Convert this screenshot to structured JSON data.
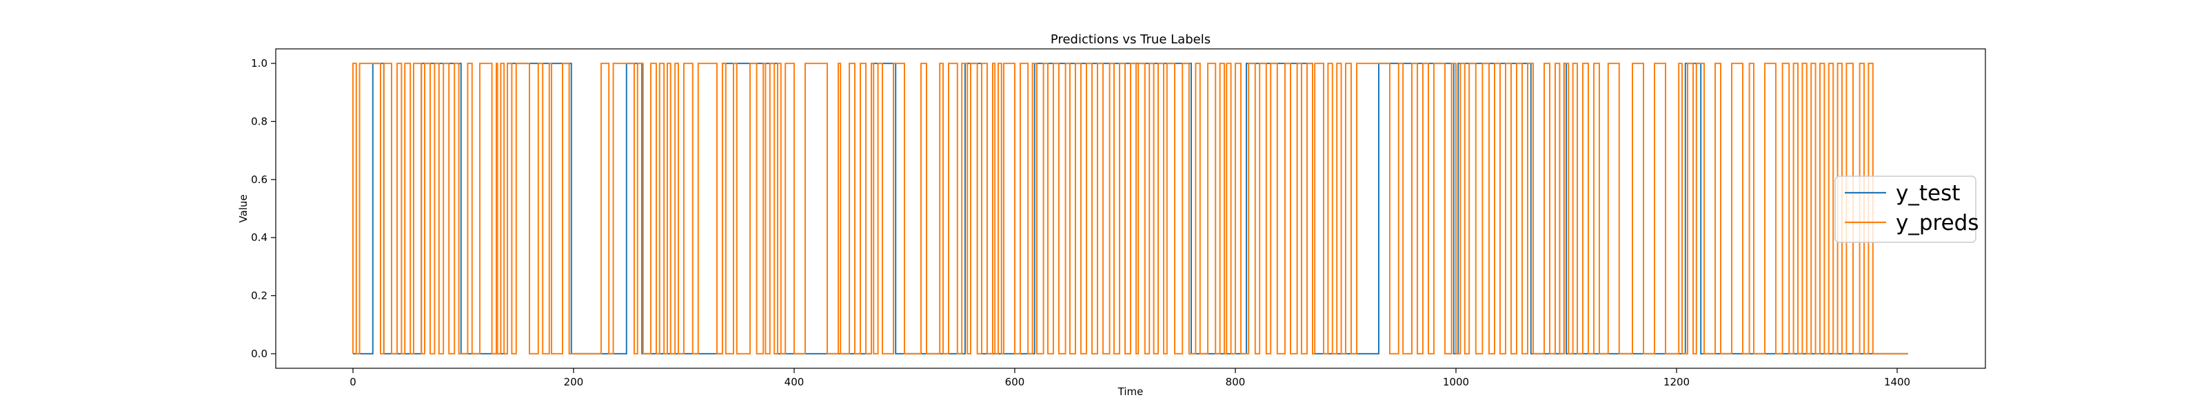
{
  "chart_data": {
    "type": "line",
    "title": "Predictions vs True Labels",
    "xlabel": "Time",
    "ylabel": "Value",
    "xlim": [
      -70,
      1480
    ],
    "ylim": [
      -0.05,
      1.05
    ],
    "xticks": [
      0,
      200,
      400,
      600,
      800,
      1000,
      1200,
      1400
    ],
    "yticks": [
      0.0,
      0.2,
      0.4,
      0.6,
      0.8,
      1.0
    ],
    "grid": false,
    "legend_position": "center-right",
    "series": [
      {
        "name": "y_test",
        "color": "#1f77b4",
        "x_end": 1410,
        "initial": 0,
        "transitions": [
          18,
          28,
          62,
          98,
          140,
          198,
          248,
          262,
          335,
          385,
          470,
          492,
          555,
          570,
          618,
          760,
          810,
          870,
          930,
          998,
          1002,
          1068,
          1098,
          1100,
          1208,
          1222
        ]
      },
      {
        "name": "y_preds",
        "color": "#ff7f0e",
        "x_end": 1410,
        "initial": 0,
        "transitions": [
          0,
          3,
          6,
          25,
          28,
          35,
          40,
          44,
          47,
          52,
          55,
          62,
          65,
          70,
          74,
          78,
          82,
          87,
          92,
          96,
          104,
          108,
          115,
          126,
          130,
          131,
          134,
          137,
          140,
          144,
          148,
          160,
          168,
          172,
          178,
          180,
          190,
          196,
          225,
          232,
          236,
          255,
          258,
          263,
          270,
          275,
          278,
          282,
          285,
          288,
          292,
          295,
          300,
          308,
          313,
          330,
          335,
          338,
          345,
          348,
          360,
          366,
          372,
          374,
          378,
          382,
          385,
          388,
          392,
          400,
          410,
          430,
          440,
          442,
          450,
          455,
          460,
          465,
          470,
          472,
          476,
          480,
          490,
          500,
          515,
          520,
          532,
          535,
          540,
          548,
          552,
          557,
          560,
          566,
          570,
          575,
          580,
          582,
          585,
          588,
          590,
          600,
          605,
          612,
          616,
          620,
          626,
          630,
          635,
          640,
          646,
          650,
          655,
          660,
          665,
          670,
          675,
          680,
          686,
          690,
          695,
          700,
          705,
          710,
          712,
          718,
          722,
          726,
          730,
          735,
          738,
          745,
          752,
          758,
          764,
          768,
          775,
          782,
          786,
          790,
          792,
          796,
          800,
          805,
          812,
          818,
          822,
          828,
          832,
          838,
          845,
          850,
          856,
          860,
          865,
          870,
          872,
          880,
          884,
          888,
          892,
          896,
          900,
          905,
          910,
          940,
          948,
          952,
          960,
          965,
          970,
          975,
          980,
          990,
          996,
          1000,
          1004,
          1008,
          1012,
          1018,
          1024,
          1030,
          1035,
          1040,
          1045,
          1050,
          1055,
          1060,
          1065,
          1070,
          1080,
          1085,
          1090,
          1094,
          1098,
          1102,
          1106,
          1110,
          1115,
          1120,
          1125,
          1130,
          1138,
          1148,
          1160,
          1170,
          1180,
          1190,
          1202,
          1205,
          1210,
          1215,
          1218,
          1225,
          1235,
          1240,
          1250,
          1260,
          1266,
          1270,
          1280,
          1290,
          1296,
          1302,
          1306,
          1310,
          1314,
          1318,
          1322,
          1326,
          1330,
          1334,
          1338,
          1342,
          1346,
          1350,
          1354,
          1360,
          1366,
          1370,
          1374,
          1378
        ]
      }
    ]
  }
}
